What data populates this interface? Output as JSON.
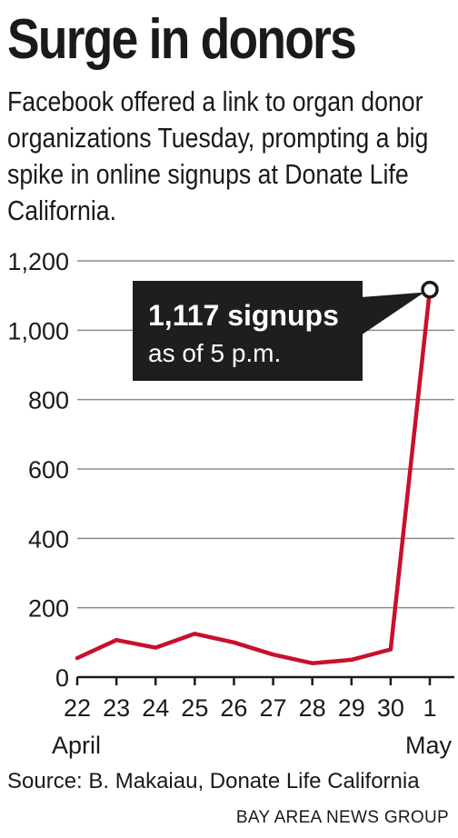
{
  "header": {
    "title": "Surge in donors",
    "subtitle": "Facebook offered a link to organ donor organizations Tuesday, prompting a big spike in online signups at Donate Life California."
  },
  "chart_data": {
    "type": "line",
    "title": "Surge in donors",
    "xlabel": "",
    "ylabel": "",
    "x": [
      "22",
      "23",
      "24",
      "25",
      "26",
      "27",
      "28",
      "29",
      "30",
      "1"
    ],
    "x_month_labels": {
      "22": "April",
      "1": "May"
    },
    "series": [
      {
        "values": [
          55,
          107,
          85,
          125,
          100,
          65,
          40,
          50,
          80,
          1117
        ],
        "color": "#c8102e"
      }
    ],
    "ylim": [
      0,
      1200
    ],
    "yticks": [
      0,
      200,
      400,
      600,
      800,
      1000,
      1200
    ],
    "ytick_labels": [
      "0",
      "200",
      "400",
      "600",
      "800",
      "1,000",
      "1,200"
    ],
    "grid": true,
    "annotation": {
      "line1": "1,117 signups",
      "line2": "as of 5 p.m.",
      "point_index": 9
    },
    "colors": {
      "line": "#c8102e",
      "grid": "#8c8c8c",
      "box": "#1e1e1e",
      "box_text": "#ffffff"
    }
  },
  "footer": {
    "source": "Source: B. Makaiau, Donate Life California",
    "credit": "BAY AREA NEWS GROUP"
  }
}
